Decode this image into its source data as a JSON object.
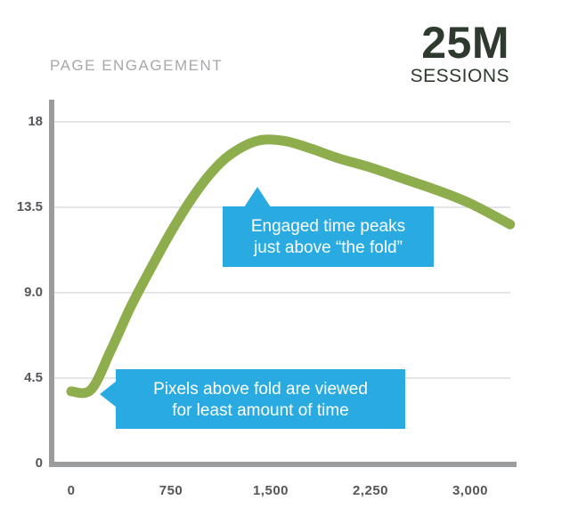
{
  "header": {
    "title": "PAGE ENGAGEMENT",
    "sessions_value": "25M",
    "sessions_label": "SESSIONS"
  },
  "colors": {
    "line_green": "#8ead4d",
    "callout_blue": "#29abe2",
    "sessions_dark": "#2e3a2e",
    "title_gray": "#a6a8ab",
    "axis_gray": "#9a9c9e",
    "gridline_gray": "#e4e5e6",
    "tick_label_gray": "#55565a"
  },
  "chart_data": {
    "type": "line",
    "title": "PAGE ENGAGEMENT",
    "subtitle": "25M SESSIONS",
    "xlabel": "",
    "ylabel": "",
    "grid": true,
    "legend": "none",
    "xlim": [
      0,
      3300
    ],
    "ylim": [
      0,
      18
    ],
    "x_ticks": [
      "0",
      "750",
      "1,500",
      "2,250",
      "3,000"
    ],
    "y_ticks": [
      "18",
      "13.5",
      "9.0",
      "4.5",
      "0"
    ],
    "x": [
      0,
      150,
      300,
      450,
      600,
      750,
      900,
      1050,
      1200,
      1400,
      1600,
      1800,
      2000,
      2250,
      2500,
      2750,
      3000,
      3300
    ],
    "series": [
      {
        "name": "Engaged time",
        "values": [
          3.8,
          3.9,
          6.0,
          8.3,
          10.3,
          12.2,
          13.9,
          15.3,
          16.3,
          17.0,
          17.0,
          16.6,
          16.1,
          15.6,
          15.0,
          14.4,
          13.7,
          12.6
        ]
      }
    ],
    "annotations": [
      {
        "id": "peak-callout",
        "line1": "Engaged time peaks",
        "line2": "just above “the fold”",
        "pointer": "top"
      },
      {
        "id": "fold-callout",
        "line1": "Pixels above fold are viewed",
        "line2": "for least amount of time",
        "pointer": "left"
      }
    ]
  }
}
